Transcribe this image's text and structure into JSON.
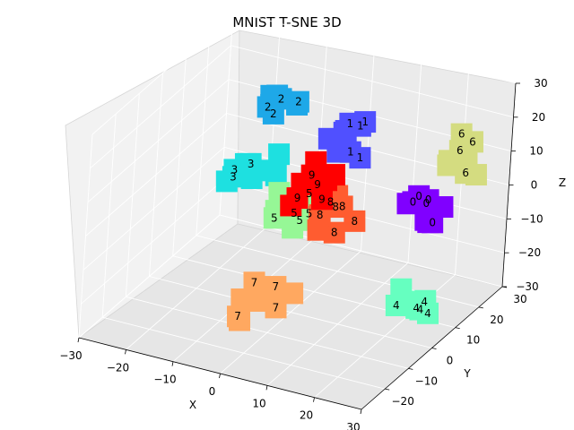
{
  "chart_data": {
    "type": "scatter",
    "projection": "3d",
    "title": "MNIST T-SNE 3D",
    "xlabel": "X",
    "ylabel": "Y",
    "zlabel": "Z",
    "xlim": [
      -30,
      30
    ],
    "ylim": [
      -30,
      30
    ],
    "zlim": [
      -30,
      30
    ],
    "x_ticks": [
      "−30",
      "−20",
      "−10",
      "0",
      "10",
      "20",
      "30"
    ],
    "y_ticks": [
      "−20",
      "−10",
      "0",
      "10",
      "20",
      "30"
    ],
    "z_ticks": [
      "−30",
      "−20",
      "−10",
      "0",
      "10",
      "20",
      "30"
    ],
    "grid": true,
    "marker": "digit label on colored square",
    "clusters": [
      {
        "digit": "0",
        "color": "#8000ff",
        "center": [
          22,
          8,
          3
        ]
      },
      {
        "digit": "1",
        "color": "#5050ff",
        "center": [
          5,
          12,
          15
        ]
      },
      {
        "digit": "2",
        "color": "#1ea8e8",
        "center": [
          -12,
          15,
          18
        ]
      },
      {
        "digit": "3",
        "color": "#1ee0e0",
        "center": [
          -12,
          5,
          5
        ]
      },
      {
        "digit": "4",
        "color": "#66ffc0",
        "center": [
          28,
          -5,
          -15
        ]
      },
      {
        "digit": "5",
        "color": "#96f796",
        "center": [
          -5,
          5,
          -5
        ]
      },
      {
        "digit": "6",
        "color": "#d4dc80",
        "center": [
          26,
          15,
          15
        ]
      },
      {
        "digit": "7",
        "color": "#ffa860",
        "center": [
          -3,
          -5,
          -25
        ]
      },
      {
        "digit": "8",
        "color": "#ff5c30",
        "center": [
          7,
          5,
          -3
        ]
      },
      {
        "digit": "9",
        "color": "#ff0000",
        "center": [
          0,
          5,
          5
        ]
      }
    ]
  }
}
